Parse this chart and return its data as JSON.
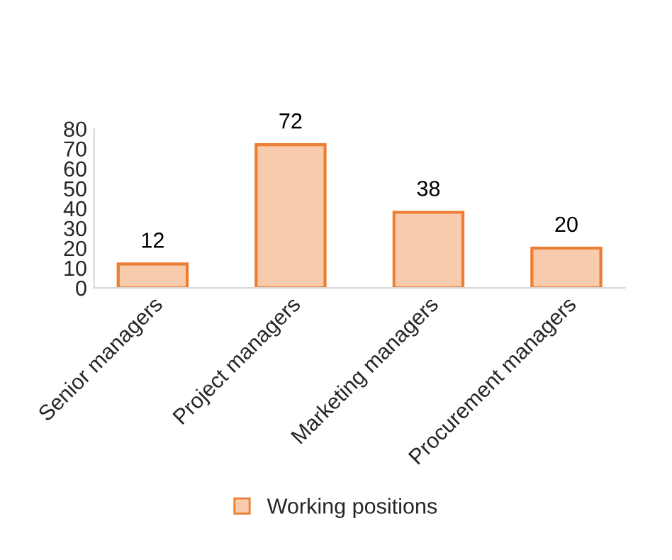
{
  "chart_data": {
    "type": "bar",
    "categories": [
      "Senior managers",
      "Project managers",
      "Marketing managers",
      "Procurement managers"
    ],
    "series": [
      {
        "name": "Working positions",
        "color": "#f8cbad",
        "values": [
          12,
          72,
          38,
          20
        ]
      }
    ],
    "ylim": [
      0,
      80
    ],
    "yticks": [
      0,
      10,
      20,
      30,
      40,
      50,
      60,
      70,
      80
    ],
    "data_labels": true,
    "grid": false,
    "legend": "bottom"
  }
}
